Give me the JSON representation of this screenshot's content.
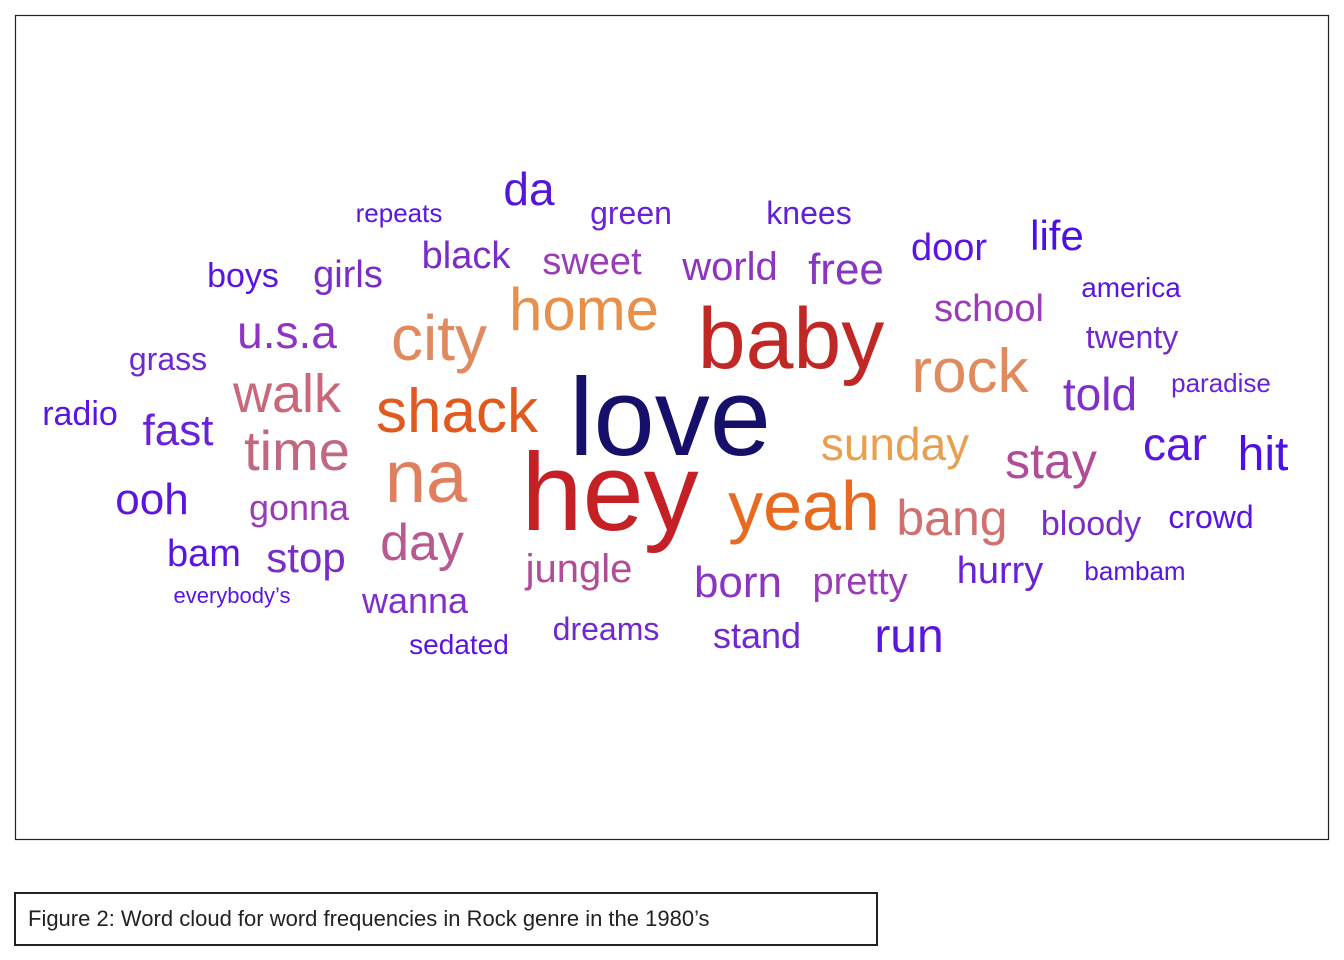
{
  "figure": {
    "words": [
      {
        "text": "repeats",
        "color": "#5a16e0"
      },
      {
        "text": "da",
        "color": "#5516d8"
      },
      {
        "text": "green",
        "color": "#6a22d8"
      },
      {
        "text": "knees",
        "color": "#6020d8"
      },
      {
        "text": "boys",
        "color": "#5a16e0"
      },
      {
        "text": "girls",
        "color": "#7a2cc8"
      },
      {
        "text": "black",
        "color": "#7a2cc8"
      },
      {
        "text": "sweet",
        "color": "#9a3cb8"
      },
      {
        "text": "world",
        "color": "#8e34c0"
      },
      {
        "text": "free",
        "color": "#8a34c4"
      },
      {
        "text": "door",
        "color": "#5a16e0"
      },
      {
        "text": "life",
        "color": "#4c10e4"
      },
      {
        "text": "america",
        "color": "#5a16e0"
      },
      {
        "text": "school",
        "color": "#9a3cb8"
      },
      {
        "text": "twenty",
        "color": "#7028d0"
      },
      {
        "text": "u.s.a",
        "color": "#8e34c0"
      },
      {
        "text": "city",
        "color": "#e08a60"
      },
      {
        "text": "home",
        "color": "#e8904a"
      },
      {
        "text": "baby",
        "color": "#c02826"
      },
      {
        "text": "grass",
        "color": "#7028d0"
      },
      {
        "text": "rock",
        "color": "#e08a60"
      },
      {
        "text": "paradise",
        "color": "#6a22d8"
      },
      {
        "text": "told",
        "color": "#8030c8"
      },
      {
        "text": "radio",
        "color": "#5a16e0"
      },
      {
        "text": "walk",
        "color": "#c8687a"
      },
      {
        "text": "shack",
        "color": "#e05a20"
      },
      {
        "text": "love",
        "color": "#16106a"
      },
      {
        "text": "fast",
        "color": "#6a22d8"
      },
      {
        "text": "time",
        "color": "#c06880"
      },
      {
        "text": "sunday",
        "color": "#e8a050"
      },
      {
        "text": "car",
        "color": "#5a16e0"
      },
      {
        "text": "hit",
        "color": "#4c10e4"
      },
      {
        "text": "stay",
        "color": "#b04c98"
      },
      {
        "text": "na",
        "color": "#e07e60"
      },
      {
        "text": "hey",
        "color": "#c42026"
      },
      {
        "text": "ooh",
        "color": "#5a16e0"
      },
      {
        "text": "gonna",
        "color": "#9a3cb8"
      },
      {
        "text": "yeah",
        "color": "#e86a20"
      },
      {
        "text": "bang",
        "color": "#d07070"
      },
      {
        "text": "bloody",
        "color": "#7a2cc8"
      },
      {
        "text": "crowd",
        "color": "#5a16e0"
      },
      {
        "text": "day",
        "color": "#b85a90"
      },
      {
        "text": "bam",
        "color": "#5a16e0"
      },
      {
        "text": "stop",
        "color": "#7a2cc8"
      },
      {
        "text": "jungle",
        "color": "#b04c98"
      },
      {
        "text": "born",
        "color": "#8a34c4"
      },
      {
        "text": "pretty",
        "color": "#9a3cb8"
      },
      {
        "text": "hurry",
        "color": "#6a22d8"
      },
      {
        "text": "bambam",
        "color": "#5a16e0"
      },
      {
        "text": "everybody’s",
        "color": "#5a16e0"
      },
      {
        "text": "wanna",
        "color": "#8030c8"
      },
      {
        "text": "dreams",
        "color": "#7028d0"
      },
      {
        "text": "stand",
        "color": "#7028d0"
      },
      {
        "text": "run",
        "color": "#5a16e0"
      },
      {
        "text": "sedated",
        "color": "#5a16e0"
      }
    ],
    "caption": "Figure 2: Word cloud for word frequencies in Rock genre in the 1980’s"
  }
}
